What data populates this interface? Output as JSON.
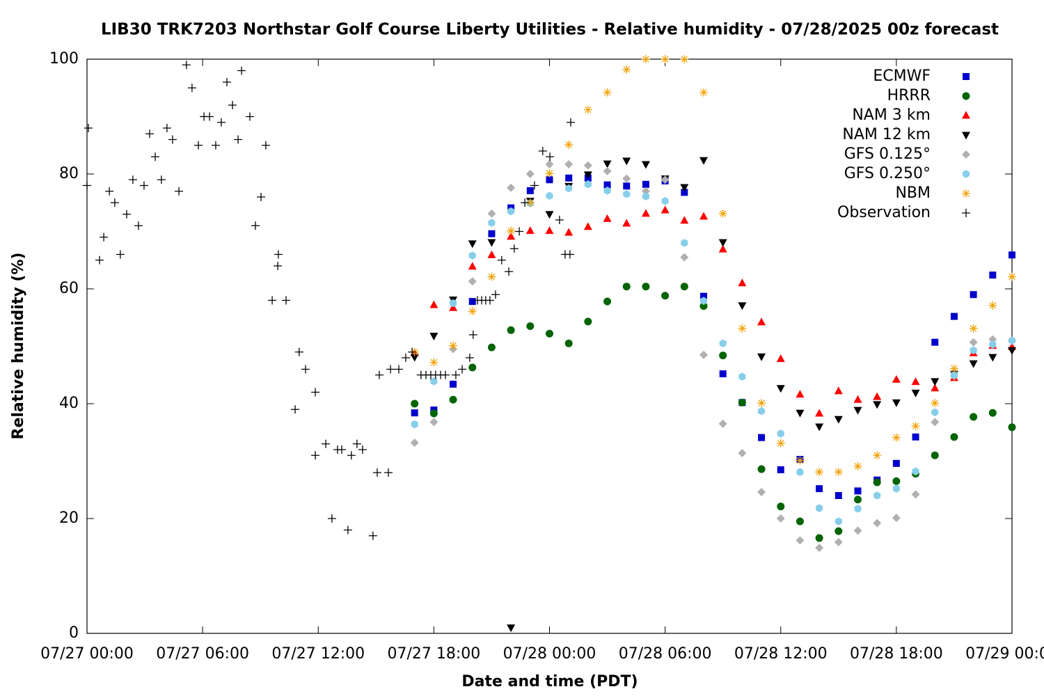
{
  "chart_data": {
    "type": "scatter",
    "title": "LIB30 TRK7203 Northstar Golf Course Liberty Utilities - Relative humidity - 07/28/2025 00z forecast",
    "xlabel": "Date and time (PDT)",
    "ylabel": "Relative humidity (%)",
    "xlim": [
      0,
      48
    ],
    "ylim": [
      0,
      100
    ],
    "xticks": [
      {
        "value": 0,
        "label": "07/27 00:00"
      },
      {
        "value": 6,
        "label": "07/27 06:00"
      },
      {
        "value": 12,
        "label": "07/27 12:00"
      },
      {
        "value": 18,
        "label": "07/27 18:00"
      },
      {
        "value": 24,
        "label": "07/28 00:00"
      },
      {
        "value": 30,
        "label": "07/28 06:00"
      },
      {
        "value": 36,
        "label": "07/28 12:00"
      },
      {
        "value": 42,
        "label": "07/28 18:00"
      },
      {
        "value": 48,
        "label": "07/29 00:00"
      }
    ],
    "yticks": [
      0,
      20,
      40,
      60,
      80,
      100
    ],
    "grid": false,
    "legend": "top-right",
    "x": [
      17,
      18,
      19,
      20,
      21,
      22,
      23,
      24,
      25,
      26,
      27,
      28,
      29,
      30,
      31,
      32,
      33,
      34,
      35,
      36,
      37,
      38,
      39,
      40,
      41,
      42,
      43,
      44,
      45,
      46,
      47,
      48
    ],
    "series": [
      {
        "name": "ECMWF",
        "color": "#0000cc",
        "marker": "square",
        "values": [
          38.4,
          38.9,
          43.4,
          57.8,
          69.6,
          74.1,
          77.1,
          79.0,
          79.3,
          79.3,
          78.1,
          77.9,
          78.2,
          78.8,
          76.8,
          58.7,
          45.2,
          40.2,
          34.1,
          28.5,
          30.3,
          25.2,
          24.0,
          24.8,
          26.7,
          29.6,
          34.2,
          50.7,
          55.2,
          59.0,
          62.4,
          65.9
        ]
      },
      {
        "name": "HRRR",
        "color": "#006400",
        "marker": "circle",
        "values": [
          40.0,
          38.3,
          40.7,
          46.3,
          49.8,
          52.8,
          53.5,
          52.2,
          50.5,
          54.3,
          57.8,
          60.4,
          60.4,
          58.8,
          60.4,
          57.0,
          48.4,
          40.2,
          28.6,
          22.1,
          19.5,
          16.6,
          17.8,
          23.3,
          26.3,
          26.5,
          27.8,
          31.0,
          34.2,
          37.7,
          38.4,
          35.9
        ]
      },
      {
        "name": "NAM 3 km",
        "color": "#ff0000",
        "marker": "triangle-up",
        "values": [
          48.8,
          57.2,
          56.7,
          63.9,
          65.9,
          69.1,
          70.1,
          70.1,
          69.8,
          70.8,
          72.2,
          71.4,
          73.1,
          73.7,
          71.9,
          72.6,
          66.9,
          61.0,
          54.2,
          47.8,
          41.6,
          38.3,
          42.2,
          40.7,
          41.2,
          44.2,
          43.8,
          42.7,
          44.5,
          48.8,
          50.1,
          49.9
        ]
      },
      {
        "name": "NAM 12 km",
        "color": "#000000",
        "marker": "triangle-down",
        "values": [
          48.1,
          51.8,
          58.1,
          67.9,
          68.1,
          1.0,
          75.3,
          73.0,
          77.9,
          79.9,
          81.8,
          82.3,
          81.7,
          79.2,
          77.7,
          82.4,
          68.1,
          57.1,
          48.2,
          42.7,
          38.4,
          36.0,
          37.3,
          38.9,
          39.9,
          40.2,
          41.9,
          43.9,
          45.2,
          47.0,
          48.1,
          49.3
        ]
      },
      {
        "name": "GFS 0.125°",
        "color": "#b0b0b0",
        "marker": "diamond",
        "values": [
          33.2,
          36.8,
          49.5,
          61.3,
          73.1,
          77.6,
          80.0,
          81.7,
          81.7,
          81.5,
          80.5,
          79.2,
          77.0,
          79.0,
          65.5,
          48.5,
          36.5,
          31.4,
          24.6,
          20.0,
          16.2,
          14.9,
          15.9,
          17.9,
          19.2,
          20.1,
          24.2,
          36.8,
          44.8,
          50.7,
          51.2,
          50.9
        ]
      },
      {
        "name": "GFS 0.250°",
        "color": "#87ceeb",
        "marker": "hexagon",
        "values": [
          36.4,
          43.9,
          57.5,
          65.8,
          71.5,
          73.5,
          74.9,
          76.2,
          77.5,
          78.2,
          77.1,
          76.5,
          76.1,
          75.3,
          68.0,
          57.9,
          50.5,
          44.7,
          38.7,
          34.8,
          28.1,
          21.8,
          19.5,
          21.7,
          24.0,
          25.2,
          28.2,
          38.5,
          45.0,
          49.3,
          50.3,
          51.0
        ]
      },
      {
        "name": "NBM",
        "color": "#f0a30a",
        "marker": "star",
        "values": [
          49.0,
          47.2,
          50.1,
          56.1,
          62.1,
          70.1,
          75.0,
          80.1,
          85.1,
          91.2,
          94.2,
          98.2,
          100,
          100,
          100,
          94.2,
          73.1,
          53.1,
          40.1,
          33.1,
          30.1,
          28.1,
          28.1,
          29.1,
          31.0,
          34.1,
          36.1,
          40.1,
          46.1,
          53.1,
          57.1,
          62.1
        ]
      },
      {
        "name": "Observation",
        "color": "#000000",
        "marker": "plus",
        "x": [
          0.07,
          0,
          0.65,
          0.87,
          1.16,
          1.44,
          1.73,
          2.06,
          2.38,
          2.67,
          2.96,
          3.25,
          3.54,
          3.86,
          4.15,
          4.44,
          4.77,
          5.16,
          5.45,
          5.78,
          6.07,
          6.36,
          6.68,
          6.97,
          7.26,
          7.55,
          7.84,
          8.02,
          8.45,
          8.74,
          9.03,
          9.28,
          9.61,
          9.9,
          9.93,
          10.33,
          10.8,
          11.01,
          11.34,
          11.85,
          11.85,
          12.39,
          12.71,
          13.0,
          13.22,
          13.54,
          13.72,
          14.01,
          14.3,
          14.84,
          15.06,
          15.17,
          15.64,
          15.75,
          16.18,
          16.54,
          16.87,
          17.33,
          17.59,
          17.84,
          18.09,
          18.35,
          18.6,
          19.14,
          19.47,
          19.86,
          20.04,
          20.26,
          20.48,
          20.69,
          20.91,
          21.2,
          21.52,
          21.89,
          22.17,
          22.43,
          22.72,
          23.22,
          23.65,
          24.02,
          24.52,
          24.81,
          25.06,
          25.1
        ],
        "values": [
          88,
          78,
          65,
          69,
          77,
          75,
          66,
          73,
          79,
          71,
          78,
          87,
          83,
          79,
          88,
          86,
          77,
          99,
          95,
          85,
          90,
          90,
          85,
          89,
          96,
          92,
          86,
          98,
          90,
          71,
          76,
          85,
          58,
          64,
          66,
          58,
          39,
          49,
          46,
          42,
          31,
          33,
          20,
          32,
          32,
          18,
          31,
          33,
          32,
          17,
          28,
          45,
          28,
          46,
          46,
          48,
          49,
          45,
          45,
          45,
          45,
          45,
          45,
          45,
          46,
          48,
          52,
          58,
          58,
          58,
          58,
          59,
          65,
          63,
          67,
          70,
          75,
          78,
          84,
          83,
          72,
          66,
          66,
          89
        ]
      }
    ]
  }
}
